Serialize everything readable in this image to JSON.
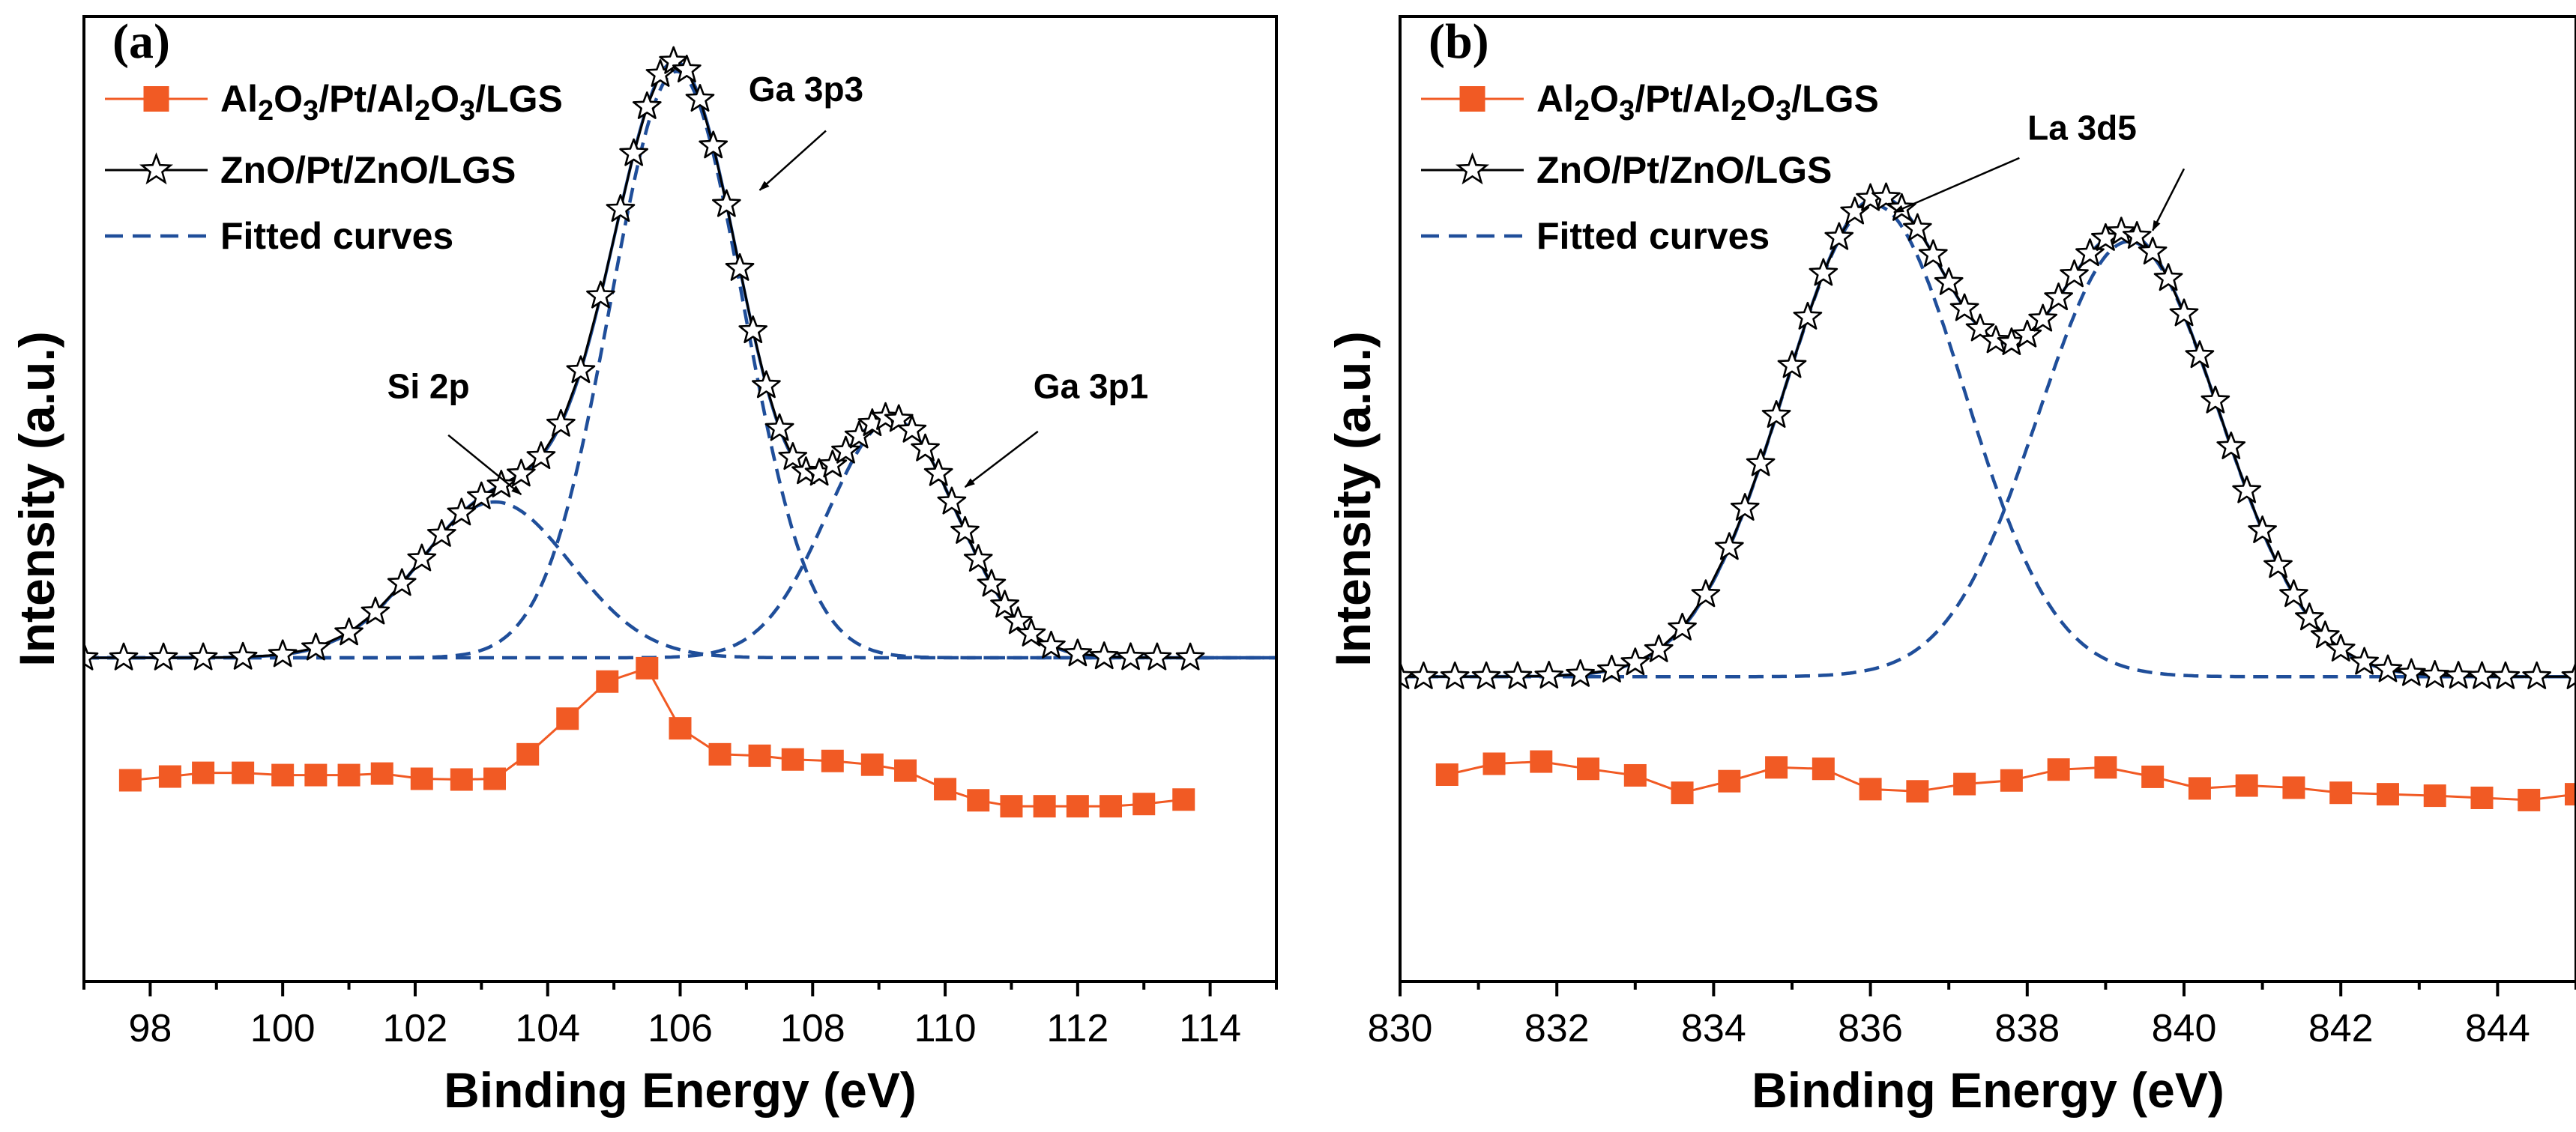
{
  "colors": {
    "series_red": "#f15a24",
    "series_black": "#000000",
    "fitted_blue": "#1f4e9a",
    "axis": "#000000"
  },
  "chart_data": [
    {
      "type": "line",
      "panel_label": "(a)",
      "xlabel": "Binding Energy (eV)",
      "ylabel": "Intensity (a.u.)",
      "xlim": [
        97,
        115
      ],
      "ylim": [
        0,
        100
      ],
      "xticks": [
        98,
        100,
        102,
        104,
        106,
        108,
        110,
        112,
        114
      ],
      "tick_labels": [
        "98",
        "100",
        "102",
        "104",
        "106",
        "108",
        "110",
        "112",
        "114"
      ],
      "grid": false,
      "legend_position": "top-left",
      "legend": [
        {
          "key": "al2o3",
          "parts": [
            [
              "Al",
              "n"
            ],
            [
              "2",
              "sub"
            ],
            [
              "O",
              "n"
            ],
            [
              "3",
              "sub"
            ],
            [
              "/Pt/Al",
              "n"
            ],
            [
              "2",
              "sub"
            ],
            [
              "O",
              "n"
            ],
            [
              "3",
              "sub"
            ],
            [
              "/LGS",
              "n"
            ]
          ],
          "marker": "square",
          "color": "#f15a24"
        },
        {
          "key": "zno",
          "parts": [
            [
              "ZnO/Pt/ZnO/LGS",
              "n"
            ]
          ],
          "marker": "star",
          "color": "#000000"
        },
        {
          "key": "fit",
          "parts": [
            [
              "Fitted curves",
              "n"
            ]
          ],
          "marker": "dash",
          "color": "#1f4e9a"
        }
      ],
      "legend_text": {
        "al2o3": "Al2O3/Pt/Al2O3/LGS",
        "zno": "ZnO/Pt/ZnO/LGS",
        "fit": "Fitted curves"
      },
      "baseline_zno": 20,
      "peaks": [
        {
          "name": "Si 2p",
          "center": 103.2,
          "amplitude": 21,
          "sigma": 1.15
        },
        {
          "name": "Ga 3p3",
          "center": 105.95,
          "amplitude": 79,
          "sigma": 1.0
        },
        {
          "name": "Ga 3p1",
          "center": 109.2,
          "amplitude": 32,
          "sigma": 0.98
        }
      ],
      "zno_x": [
        97.0,
        97.6,
        98.2,
        98.8,
        99.4,
        100.0,
        100.5,
        101.0,
        101.4,
        101.8,
        102.1,
        102.4,
        102.7,
        103.0,
        103.3,
        103.6,
        103.9,
        104.2,
        104.5,
        104.8,
        105.1,
        105.3,
        105.5,
        105.7,
        105.9,
        106.1,
        106.3,
        106.5,
        106.7,
        106.9,
        107.1,
        107.3,
        107.5,
        107.7,
        107.9,
        108.1,
        108.3,
        108.5,
        108.7,
        108.9,
        109.1,
        109.3,
        109.5,
        109.7,
        109.9,
        110.1,
        110.3,
        110.5,
        110.7,
        110.9,
        111.1,
        111.3,
        111.6,
        112.0,
        112.4,
        112.8,
        113.2,
        113.7
      ],
      "al2o3_x": [
        97.7,
        98.3,
        98.8,
        99.4,
        100.0,
        100.5,
        101.0,
        101.5,
        102.1,
        102.7,
        103.2,
        103.7,
        104.3,
        104.9,
        105.5,
        106.0,
        106.6,
        107.2,
        107.7,
        108.3,
        108.9,
        109.4,
        110.0,
        110.5,
        111.0,
        111.5,
        112.0,
        112.5,
        113.0,
        113.6
      ],
      "al2o3_y": [
        3.5,
        4.0,
        4.5,
        4.5,
        4.2,
        4.2,
        4.2,
        4.4,
        3.7,
        3.6,
        3.7,
        7.0,
        11.8,
        16.8,
        18.6,
        10.5,
        7.0,
        6.8,
        6.3,
        6.1,
        5.6,
        4.8,
        2.3,
        0.8,
        0.0,
        0.0,
        0.0,
        0.0,
        0.3,
        0.9
      ],
      "annotations": [
        {
          "text": "Si 2p",
          "text_x": 102.2,
          "text_y": 55,
          "arrow_from": [
            102.5,
            50
          ],
          "arrow_to": [
            103.6,
            42
          ]
        },
        {
          "text": "Ga 3p3",
          "text_x": 107.9,
          "text_y": 95,
          "arrow_from": [
            108.2,
            91
          ],
          "arrow_to": [
            107.2,
            83
          ]
        },
        {
          "text": "Ga 3p1",
          "text_x": 112.2,
          "text_y": 55,
          "arrow_from": [
            111.4,
            50.5
          ],
          "arrow_to": [
            110.3,
            43
          ]
        }
      ]
    },
    {
      "type": "line",
      "panel_label": "(b)",
      "xlabel": "Binding Energy (eV)",
      "ylabel": "Intensity (a.u.)",
      "xlim": [
        830,
        845
      ],
      "ylim": [
        0,
        100
      ],
      "xticks": [
        830,
        832,
        834,
        836,
        838,
        840,
        842,
        844
      ],
      "tick_labels": [
        "830",
        "832",
        "834",
        "836",
        "838",
        "840",
        "842",
        "844"
      ],
      "grid": false,
      "legend_position": "top-left",
      "legend": [
        {
          "key": "al2o3",
          "parts": [
            [
              "Al",
              "n"
            ],
            [
              "2",
              "sub"
            ],
            [
              "O",
              "n"
            ],
            [
              "3",
              "sub"
            ],
            [
              "/Pt/Al",
              "n"
            ],
            [
              "2",
              "sub"
            ],
            [
              "O",
              "n"
            ],
            [
              "3",
              "sub"
            ],
            [
              "/LGS",
              "n"
            ]
          ],
          "marker": "square",
          "color": "#f15a24"
        },
        {
          "key": "zno",
          "parts": [
            [
              "ZnO/Pt/ZnO/LGS",
              "n"
            ]
          ],
          "marker": "star",
          "color": "#000000"
        },
        {
          "key": "fit",
          "parts": [
            [
              "Fitted curves",
              "n"
            ]
          ],
          "marker": "dash",
          "color": "#1f4e9a"
        }
      ],
      "legend_text": {
        "al2o3": "Al2O3/Pt/Al2O3/LGS",
        "zno": "ZnO/Pt/ZnO/LGS",
        "fit": "Fitted curves"
      },
      "baseline_zno": 17,
      "peaks": [
        {
          "name": "La 3d5",
          "center": 836.05,
          "amplitude": 65,
          "sigma": 1.15
        },
        {
          "name": "La 3d5",
          "center": 839.3,
          "amplitude": 60,
          "sigma": 1.15
        }
      ],
      "zno_x": [
        830.0,
        830.3,
        830.7,
        831.1,
        831.5,
        831.9,
        832.3,
        832.7,
        833.0,
        833.3,
        833.6,
        833.9,
        834.2,
        834.4,
        834.6,
        834.8,
        835.0,
        835.2,
        835.4,
        835.6,
        835.8,
        836.0,
        836.2,
        836.4,
        836.6,
        836.8,
        837.0,
        837.2,
        837.4,
        837.6,
        837.8,
        838.0,
        838.2,
        838.4,
        838.6,
        838.8,
        839.0,
        839.2,
        839.4,
        839.6,
        839.8,
        840.0,
        840.2,
        840.4,
        840.6,
        840.8,
        841.0,
        841.2,
        841.4,
        841.6,
        841.8,
        842.0,
        842.3,
        842.6,
        842.9,
        843.2,
        843.5,
        843.8,
        844.1,
        844.5,
        845.0
      ],
      "al2o3_x": [
        830.6,
        831.2,
        831.8,
        832.4,
        833.0,
        833.6,
        834.2,
        834.8,
        835.4,
        836.0,
        836.6,
        837.2,
        837.8,
        838.4,
        839.0,
        839.6,
        840.2,
        840.8,
        841.4,
        842.0,
        842.6,
        843.2,
        843.8,
        844.4,
        845.0
      ],
      "al2o3_y": [
        3.5,
        5.0,
        5.3,
        4.3,
        3.4,
        1.0,
        2.6,
        4.5,
        4.3,
        1.5,
        1.2,
        2.2,
        2.7,
        4.2,
        4.5,
        3.2,
        1.6,
        2.0,
        1.7,
        1.0,
        0.8,
        0.6,
        0.3,
        0.0,
        0.8
      ],
      "annotations": [
        {
          "text": "La 3d5",
          "text_x": 838.7,
          "text_y": 91,
          "arrow_from": [
            837.9,
            88.5
          ],
          "arrow_to": [
            836.3,
            81
          ],
          "arrow2_from": [
            840.0,
            87
          ],
          "arrow2_to": [
            839.6,
            78.5
          ]
        }
      ]
    }
  ]
}
